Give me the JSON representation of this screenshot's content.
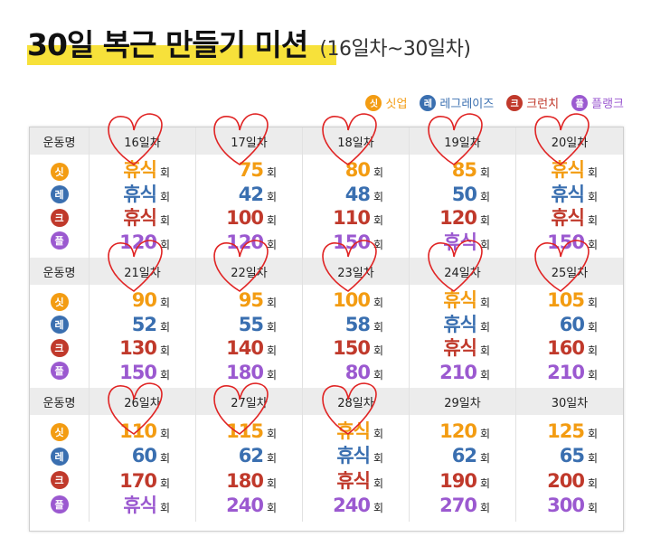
{
  "title": {
    "main": "30일 복근 만들기 미션",
    "sub": "(16일차~30일차)"
  },
  "legend": [
    {
      "badge": "싯",
      "label": "싯업",
      "key": "squat"
    },
    {
      "badge": "레",
      "label": "레그레이즈",
      "key": "leg"
    },
    {
      "badge": "크",
      "label": "크런치",
      "key": "crunch"
    },
    {
      "badge": "플",
      "label": "플랭크",
      "key": "plank"
    }
  ],
  "colors": {
    "squat": "#f39c12",
    "leg": "#3a6fb0",
    "crunch": "#c0392b",
    "plank": "#9b59d0",
    "heart": "#e02424"
  },
  "row_label": "운동명",
  "unit": "회",
  "blocks": [
    {
      "days": [
        "16일차",
        "17일차",
        "18일차",
        "19일차",
        "20일차"
      ],
      "squat": [
        "휴식",
        "75",
        "80",
        "85",
        "휴식"
      ],
      "leg": [
        "휴식",
        "42",
        "48",
        "50",
        "휴식"
      ],
      "crunch": [
        "휴식",
        "100",
        "110",
        "120",
        "휴식"
      ],
      "plank": [
        "120",
        "120",
        "150",
        "휴식",
        "150"
      ]
    },
    {
      "days": [
        "21일차",
        "22일차",
        "23일차",
        "24일차",
        "25일차"
      ],
      "squat": [
        "90",
        "95",
        "100",
        "휴식",
        "105"
      ],
      "leg": [
        "52",
        "55",
        "58",
        "휴식",
        "60"
      ],
      "crunch": [
        "130",
        "140",
        "150",
        "휴식",
        "160"
      ],
      "plank": [
        "150",
        "180",
        "80",
        "210",
        "210"
      ]
    },
    {
      "days": [
        "26일차",
        "27일차",
        "28일차",
        "29일차",
        "30일차"
      ],
      "squat": [
        "110",
        "115",
        "휴식",
        "120",
        "125"
      ],
      "leg": [
        "60",
        "62",
        "휴식",
        "62",
        "65"
      ],
      "crunch": [
        "170",
        "180",
        "휴식",
        "190",
        "200"
      ],
      "plank": [
        "휴식",
        "240",
        "240",
        "270",
        "300"
      ]
    }
  ]
}
